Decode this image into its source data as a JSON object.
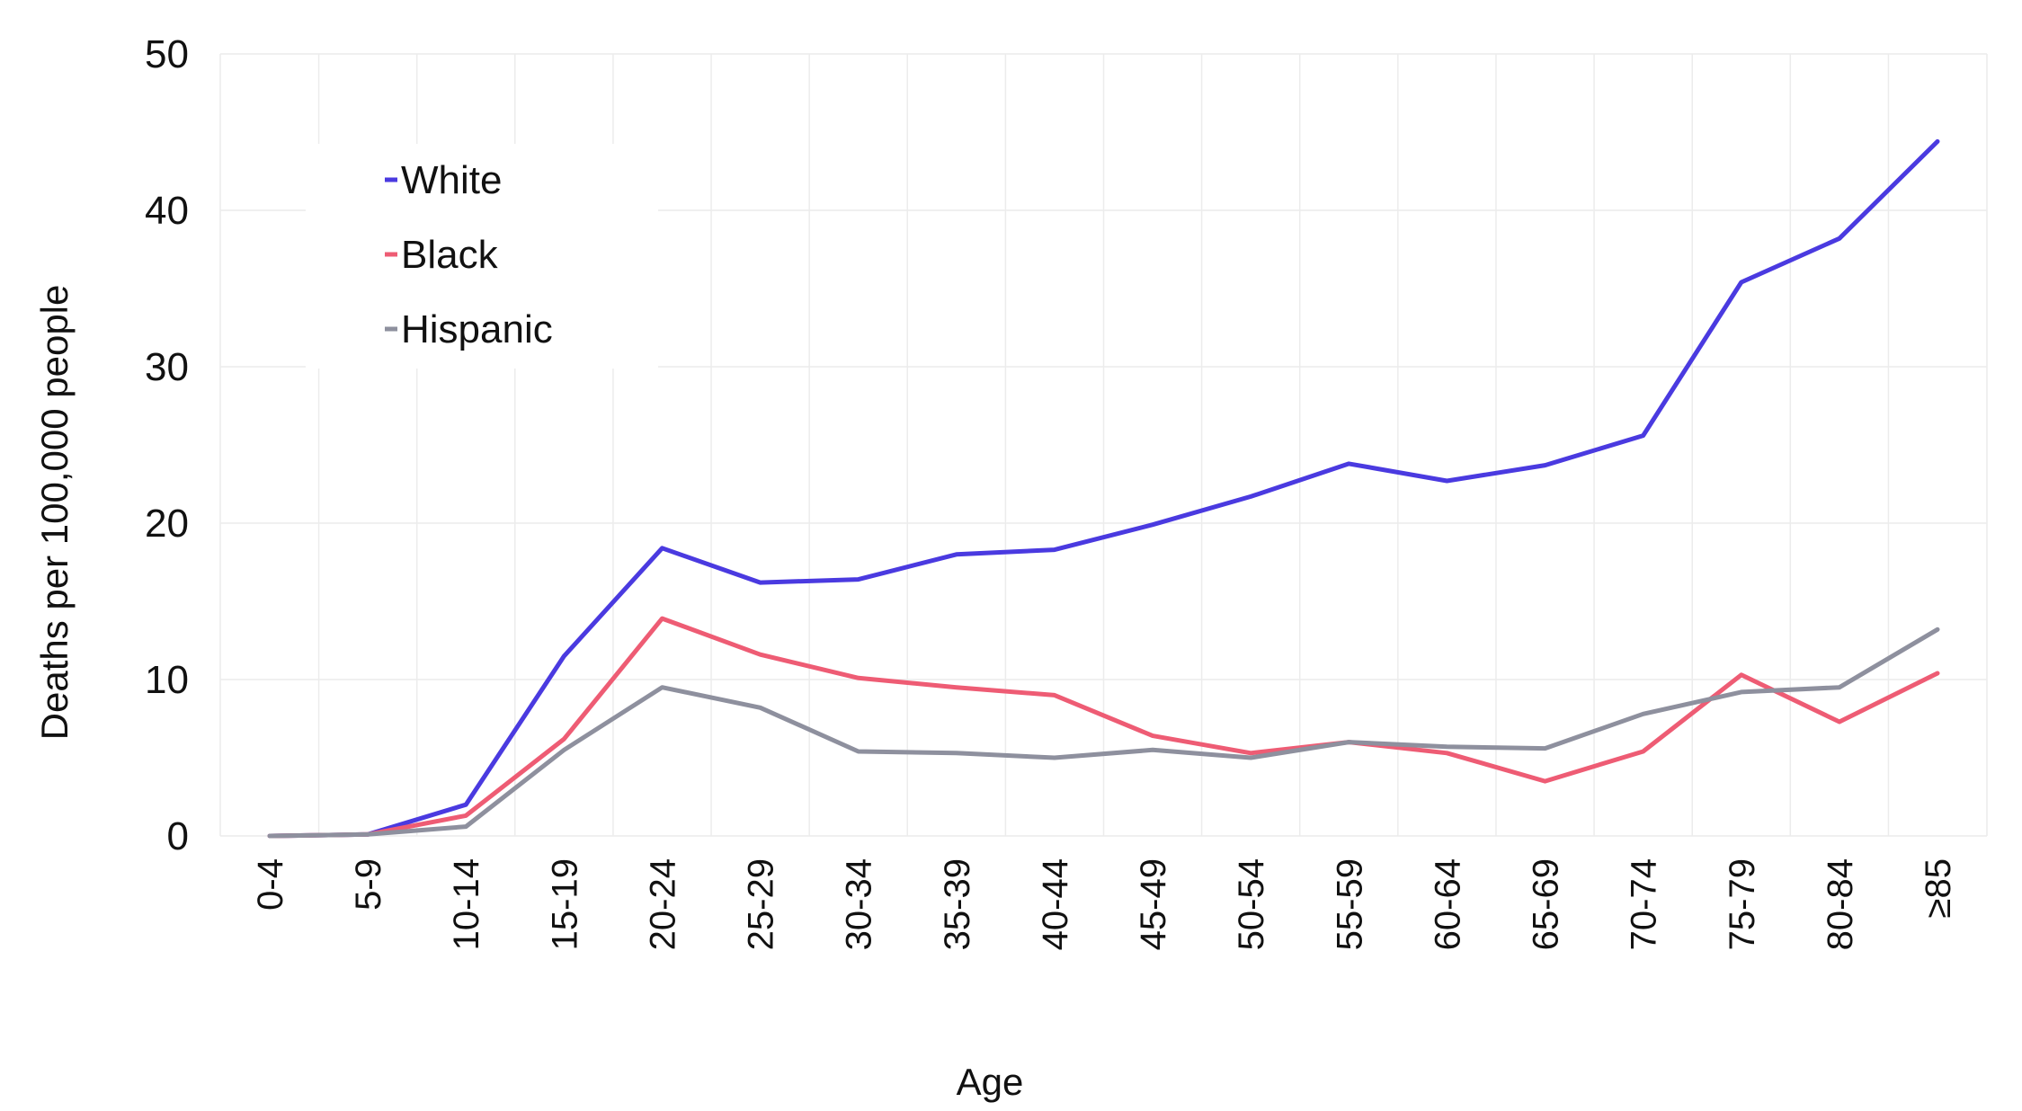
{
  "chart_data": {
    "type": "line",
    "xlabel": "Age",
    "ylabel": "Deaths per 100,000 people",
    "ylim": [
      0,
      50
    ],
    "yticks": [
      "0",
      "10",
      "20",
      "30",
      "40",
      "50"
    ],
    "grid": true,
    "legend_placement": "top-left",
    "categories": [
      "0-4",
      "5-9",
      "10-14",
      "15-19",
      "20-24",
      "25-29",
      "30-34",
      "35-39",
      "40-44",
      "45-49",
      "50-54",
      "55-59",
      "60-64",
      "65-69",
      "70-74",
      "75-79",
      "80-84",
      "≥85"
    ],
    "series": [
      {
        "name": "White",
        "color": "#4a3ae0",
        "values": [
          0,
          0.1,
          2.0,
          11.5,
          18.4,
          16.2,
          16.4,
          18.0,
          18.3,
          19.9,
          21.7,
          23.8,
          22.7,
          23.7,
          25.6,
          35.4,
          38.2,
          44.4
        ]
      },
      {
        "name": "Black",
        "color": "#ee5c74",
        "values": [
          0,
          0.1,
          1.3,
          6.2,
          13.9,
          11.6,
          10.1,
          9.5,
          9.0,
          6.4,
          5.3,
          6.0,
          5.3,
          3.5,
          5.4,
          10.3,
          7.3,
          10.4
        ]
      },
      {
        "name": "Hispanic",
        "color": "#8e909e",
        "values": [
          0,
          0.1,
          0.6,
          5.5,
          9.5,
          8.2,
          5.4,
          5.3,
          5.0,
          5.5,
          5.0,
          6.0,
          5.7,
          5.6,
          7.8,
          9.2,
          9.5,
          13.2
        ]
      }
    ]
  }
}
